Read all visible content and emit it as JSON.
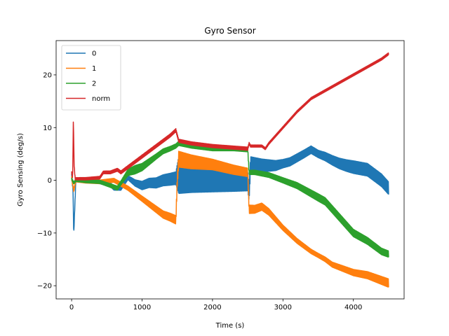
{
  "chart_data": {
    "type": "line",
    "title": "Gyro Sensor",
    "xlabel": "Time (s)",
    "ylabel": "Gyro Sensing (deg/s)",
    "xlim": [
      -220,
      4720
    ],
    "ylim": [
      -22.5,
      26.5
    ],
    "xticks": [
      0,
      1000,
      2000,
      3000,
      4000
    ],
    "yticks": [
      -20,
      -10,
      0,
      10,
      20
    ],
    "ytick_labels": [
      "−20",
      "−10",
      "0",
      "10",
      "20"
    ],
    "grid": false,
    "legend": "top-left",
    "series": [
      {
        "name": "0",
        "color": "#1f77b4",
        "amplitude": [
          [
            0,
            0.3
          ],
          [
            800,
            0.4
          ],
          [
            1000,
            0.8
          ],
          [
            1480,
            1.2
          ],
          [
            1520,
            3.5
          ],
          [
            2000,
            3.0
          ],
          [
            2500,
            2.0
          ],
          [
            2520,
            1.5
          ],
          [
            3000,
            0.8
          ],
          [
            3500,
            0.7
          ],
          [
            4000,
            1.2
          ],
          [
            4500,
            1.2
          ]
        ],
        "points": [
          [
            0,
            1.0
          ],
          [
            20,
            -2.0
          ],
          [
            30,
            -10.5
          ],
          [
            45,
            -5.0
          ],
          [
            60,
            0.0
          ],
          [
            200,
            0.0
          ],
          [
            400,
            -0.3
          ],
          [
            550,
            -0.8
          ],
          [
            600,
            -1.5
          ],
          [
            700,
            -1.5
          ],
          [
            800,
            0.5
          ],
          [
            900,
            -0.5
          ],
          [
            1000,
            -1.0
          ],
          [
            1100,
            -0.5
          ],
          [
            1200,
            -0.5
          ],
          [
            1300,
            0.0
          ],
          [
            1400,
            0.2
          ],
          [
            1480,
            0.4
          ],
          [
            1520,
            1.0
          ],
          [
            1700,
            1.0
          ],
          [
            2000,
            0.8
          ],
          [
            2300,
            0.3
          ],
          [
            2500,
            0.0
          ],
          [
            2520,
            -2.5
          ],
          [
            2540,
            3.0
          ],
          [
            2700,
            2.8
          ],
          [
            2900,
            2.8
          ],
          [
            3100,
            3.5
          ],
          [
            3300,
            5.0
          ],
          [
            3400,
            5.8
          ],
          [
            3500,
            5.0
          ],
          [
            3600,
            4.5
          ],
          [
            3700,
            3.8
          ],
          [
            3800,
            3.2
          ],
          [
            3900,
            2.8
          ],
          [
            4000,
            2.5
          ],
          [
            4200,
            2.0
          ],
          [
            4300,
            1.0
          ],
          [
            4400,
            0.0
          ],
          [
            4500,
            -1.5
          ]
        ]
      },
      {
        "name": "1",
        "color": "#ff7f0e",
        "amplitude": [
          [
            0,
            0.3
          ],
          [
            800,
            0.4
          ],
          [
            1000,
            0.5
          ],
          [
            1480,
            0.8
          ],
          [
            1520,
            1.5
          ],
          [
            2000,
            1.0
          ],
          [
            2500,
            0.8
          ],
          [
            2520,
            0.8
          ],
          [
            3000,
            0.5
          ],
          [
            3500,
            0.4
          ],
          [
            4000,
            0.6
          ],
          [
            4500,
            0.8
          ]
        ],
        "points": [
          [
            0,
            0.5
          ],
          [
            30,
            -2.0
          ],
          [
            60,
            0.0
          ],
          [
            200,
            -0.2
          ],
          [
            400,
            -0.3
          ],
          [
            600,
            0.0
          ],
          [
            800,
            -1.5
          ],
          [
            900,
            -2.5
          ],
          [
            1000,
            -3.5
          ],
          [
            1100,
            -4.5
          ],
          [
            1200,
            -5.5
          ],
          [
            1300,
            -6.5
          ],
          [
            1400,
            -7.0
          ],
          [
            1480,
            -7.5
          ],
          [
            1500,
            0.0
          ],
          [
            1520,
            4.0
          ],
          [
            1700,
            3.5
          ],
          [
            2000,
            3.0
          ],
          [
            2300,
            2.0
          ],
          [
            2500,
            1.5
          ],
          [
            2520,
            -5.5
          ],
          [
            2600,
            -5.5
          ],
          [
            2700,
            -5.0
          ],
          [
            2800,
            -6.0
          ],
          [
            2900,
            -7.5
          ],
          [
            3000,
            -9.0
          ],
          [
            3200,
            -11.5
          ],
          [
            3400,
            -13.5
          ],
          [
            3600,
            -15.0
          ],
          [
            3700,
            -16.0
          ],
          [
            3800,
            -16.5
          ],
          [
            3900,
            -17.0
          ],
          [
            4000,
            -17.5
          ],
          [
            4200,
            -18.0
          ],
          [
            4300,
            -18.5
          ],
          [
            4400,
            -19.0
          ],
          [
            4500,
            -19.5
          ]
        ]
      },
      {
        "name": "2",
        "color": "#2ca02c",
        "amplitude": [
          [
            0,
            0.2
          ],
          [
            700,
            0.4
          ],
          [
            900,
            0.8
          ],
          [
            1200,
            0.5
          ],
          [
            1480,
            0.4
          ],
          [
            1520,
            0.4
          ],
          [
            2500,
            0.4
          ],
          [
            2520,
            0.4
          ],
          [
            3000,
            0.5
          ],
          [
            3500,
            0.7
          ],
          [
            4000,
            0.7
          ],
          [
            4500,
            0.6
          ]
        ],
        "points": [
          [
            0,
            0.3
          ],
          [
            30,
            -0.5
          ],
          [
            60,
            0.0
          ],
          [
            200,
            -0.2
          ],
          [
            400,
            -0.3
          ],
          [
            550,
            -1.0
          ],
          [
            650,
            -1.5
          ],
          [
            750,
            0.5
          ],
          [
            800,
            1.5
          ],
          [
            900,
            2.0
          ],
          [
            1000,
            2.5
          ],
          [
            1100,
            3.5
          ],
          [
            1200,
            4.5
          ],
          [
            1300,
            5.5
          ],
          [
            1400,
            6.0
          ],
          [
            1480,
            6.5
          ],
          [
            1520,
            7.0
          ],
          [
            1700,
            6.5
          ],
          [
            2000,
            6.0
          ],
          [
            2300,
            6.0
          ],
          [
            2500,
            5.8
          ],
          [
            2520,
            1.5
          ],
          [
            2600,
            1.5
          ],
          [
            2800,
            1.0
          ],
          [
            3000,
            0.0
          ],
          [
            3200,
            -1.0
          ],
          [
            3400,
            -2.5
          ],
          [
            3600,
            -4.0
          ],
          [
            3700,
            -5.5
          ],
          [
            3800,
            -7.0
          ],
          [
            3900,
            -8.5
          ],
          [
            4000,
            -10.0
          ],
          [
            4200,
            -11.5
          ],
          [
            4300,
            -12.5
          ],
          [
            4400,
            -13.5
          ],
          [
            4500,
            -14.0
          ]
        ]
      },
      {
        "name": "norm",
        "color": "#d62728",
        "amplitude": [
          [
            0,
            0.2
          ],
          [
            800,
            0.3
          ],
          [
            1480,
            0.3
          ],
          [
            1520,
            0.3
          ],
          [
            2500,
            0.3
          ],
          [
            2520,
            0.2
          ],
          [
            4500,
            0.2
          ]
        ],
        "points": [
          [
            0,
            1.5
          ],
          [
            15,
            0.5
          ],
          [
            25,
            12.0
          ],
          [
            35,
            3.0
          ],
          [
            50,
            0.3
          ],
          [
            200,
            0.3
          ],
          [
            400,
            0.5
          ],
          [
            450,
            1.5
          ],
          [
            550,
            1.5
          ],
          [
            650,
            2.0
          ],
          [
            700,
            1.5
          ],
          [
            800,
            2.5
          ],
          [
            900,
            3.5
          ],
          [
            1000,
            4.5
          ],
          [
            1100,
            5.5
          ],
          [
            1200,
            6.5
          ],
          [
            1300,
            7.5
          ],
          [
            1400,
            8.5
          ],
          [
            1480,
            9.5
          ],
          [
            1510,
            8.0
          ],
          [
            1520,
            7.5
          ],
          [
            1700,
            7.0
          ],
          [
            2000,
            6.5
          ],
          [
            2300,
            6.2
          ],
          [
            2500,
            6.0
          ],
          [
            2520,
            7.0
          ],
          [
            2540,
            6.5
          ],
          [
            2700,
            6.5
          ],
          [
            2750,
            6.0
          ],
          [
            2800,
            7.0
          ],
          [
            2900,
            8.5
          ],
          [
            3000,
            10.0
          ],
          [
            3200,
            13.0
          ],
          [
            3400,
            15.5
          ],
          [
            3600,
            17.0
          ],
          [
            3800,
            18.5
          ],
          [
            4000,
            20.0
          ],
          [
            4200,
            21.5
          ],
          [
            4400,
            23.0
          ],
          [
            4500,
            24.0
          ]
        ]
      }
    ]
  }
}
